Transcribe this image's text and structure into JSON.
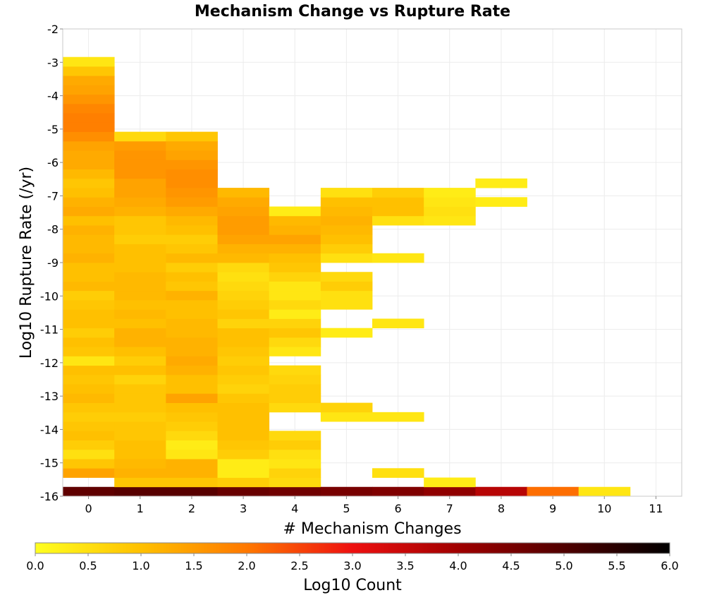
{
  "chart_data": {
    "type": "heatmap",
    "title": "Mechanism Change vs Rupture Rate",
    "xlabel": "# Mechanism Changes",
    "ylabel": "Log10 Rupture Rate (/yr)",
    "xlim": [
      -0.5,
      11.5
    ],
    "ylim": [
      -16,
      -2
    ],
    "x_ticks": [
      0,
      1,
      2,
      3,
      4,
      5,
      6,
      7,
      8,
      9,
      10,
      11
    ],
    "y_ticks": [
      -2,
      -3,
      -4,
      -5,
      -6,
      -7,
      -8,
      -9,
      -10,
      -11,
      -12,
      -13,
      -14,
      -15,
      -16
    ],
    "x_bin_width": 1,
    "y_bin_size": 0.28,
    "y_bin_start": -16,
    "grid": true,
    "colorbar": {
      "label": "Log10 Count",
      "min": 0.0,
      "max": 6.0,
      "ticks": [
        "0.0",
        "0.5",
        "1.0",
        "1.5",
        "2.0",
        "2.5",
        "3.0",
        "3.5",
        "4.0",
        "4.5",
        "5.0",
        "5.5",
        "6.0"
      ],
      "colormap_stops": [
        {
          "value": 0.0,
          "color": "#ffff20"
        },
        {
          "value": 1.0,
          "color": "#ffc000"
        },
        {
          "value": 2.0,
          "color": "#ff7800"
        },
        {
          "value": 3.0,
          "color": "#ee1010"
        },
        {
          "value": 4.0,
          "color": "#a00000"
        },
        {
          "value": 5.0,
          "color": "#500000"
        },
        {
          "value": 6.0,
          "color": "#000000"
        }
      ]
    },
    "columns": [
      {
        "x": 0,
        "values": [
          4.8,
          null,
          1.4,
          0.9,
          0.5,
          0.8,
          1.0,
          0.9,
          0.8,
          0.9,
          1.1,
          1.0,
          0.9,
          1.0,
          0.4,
          0.9,
          1.0,
          0.8,
          1.0,
          1.0,
          0.9,
          0.8,
          1.1,
          1.0,
          1.0,
          1.2,
          1.1,
          1.1,
          1.2,
          1.0,
          1.3,
          1.2,
          1.0,
          0.9,
          1.1,
          1.3,
          1.3,
          1.4,
          1.7,
          1.9,
          1.9,
          1.8,
          1.6,
          1.4,
          1.3,
          0.9,
          0.4
        ]
      },
      {
        "x": 1,
        "values": [
          4.9,
          0.9,
          1.2,
          1.1,
          1.0,
          1.0,
          0.9,
          0.9,
          0.8,
          0.9,
          0.9,
          0.9,
          0.7,
          1.0,
          0.8,
          1.0,
          1.2,
          1.2,
          1.0,
          1.1,
          1.0,
          1.1,
          1.1,
          1.1,
          1.0,
          1.0,
          1.0,
          0.8,
          0.9,
          0.9,
          1.2,
          1.3,
          1.4,
          1.4,
          1.6,
          1.6,
          1.6,
          1.5,
          0.6
        ]
      },
      {
        "x": 2,
        "values": [
          4.9,
          0.9,
          1.2,
          1.2,
          0.4,
          0.3,
          0.6,
          0.8,
          0.9,
          1.0,
          1.4,
          1.0,
          1.0,
          1.2,
          1.3,
          1.2,
          1.2,
          1.1,
          1.1,
          1.0,
          1.0,
          1.2,
          0.9,
          1.0,
          0.8,
          1.1,
          0.9,
          0.8,
          1.0,
          1.1,
          1.3,
          1.5,
          1.6,
          1.7,
          1.7,
          1.6,
          1.4,
          1.3,
          0.9
        ]
      },
      {
        "x": 3,
        "values": [
          4.7,
          0.8,
          0.3,
          0.3,
          0.8,
          0.9,
          1.0,
          1.0,
          1.0,
          1.0,
          0.9,
          0.7,
          0.8,
          0.9,
          0.8,
          0.9,
          1.0,
          1.0,
          0.7,
          0.9,
          0.8,
          0.7,
          0.6,
          0.5,
          0.6,
          1.1,
          1.2,
          1.4,
          1.5,
          1.5,
          1.4,
          1.3,
          1.1
        ]
      },
      {
        "x": 4,
        "values": [
          4.6,
          0.6,
          0.7,
          0.4,
          0.5,
          0.8,
          0.6,
          null,
          null,
          0.6,
          0.8,
          0.8,
          0.7,
          0.6,
          null,
          0.4,
          0.6,
          0.9,
          0.7,
          0.3,
          0.6,
          0.4,
          0.4,
          0.7,
          0.9,
          1.0,
          1.2,
          1.4,
          1.2,
          1.1,
          0.3
        ]
      },
      {
        "x": 5,
        "values": [
          4.5,
          null,
          null,
          null,
          null,
          null,
          null,
          null,
          0.4,
          0.7,
          null,
          null,
          null,
          null,
          null,
          null,
          null,
          0.3,
          null,
          null,
          0.5,
          0.5,
          0.8,
          0.6,
          null,
          0.5,
          0.8,
          1.0,
          1.1,
          1.2,
          1.1,
          1.0,
          0.5
        ]
      },
      {
        "x": 6,
        "values": [
          4.4,
          null,
          0.5,
          null,
          null,
          null,
          null,
          null,
          0.4,
          null,
          null,
          null,
          null,
          null,
          null,
          null,
          null,
          null,
          0.4,
          null,
          null,
          null,
          null,
          null,
          null,
          0.4,
          null,
          null,
          null,
          0.5,
          1.0,
          1.0,
          0.8
        ]
      },
      {
        "x": 7,
        "values": [
          4.2,
          0.3,
          null,
          null,
          null,
          null,
          null,
          null,
          null,
          null,
          null,
          null,
          null,
          null,
          null,
          null,
          null,
          null,
          null,
          null,
          null,
          null,
          null,
          null,
          null,
          null,
          null,
          null,
          null,
          0.4,
          0.5,
          0.4,
          0.3
        ]
      },
      {
        "x": 8,
        "values": [
          3.7,
          null,
          null,
          null,
          null,
          null,
          null,
          null,
          null,
          null,
          null,
          null,
          null,
          null,
          null,
          null,
          null,
          null,
          null,
          null,
          null,
          null,
          null,
          null,
          null,
          null,
          null,
          null,
          null,
          null,
          null,
          0.3,
          null,
          0.3
        ]
      },
      {
        "x": 9,
        "values": [
          2.1
        ]
      },
      {
        "x": 10,
        "values": [
          0.4
        ]
      }
    ]
  }
}
